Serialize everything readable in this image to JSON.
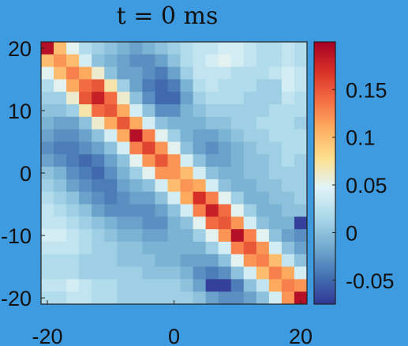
{
  "figure": {
    "background": "#3f9be0"
  },
  "chart_data": {
    "type": "heatmap",
    "title": "t = 0 ms",
    "xlabel": "",
    "ylabel": "",
    "x": [
      -20,
      -18,
      -16,
      -14,
      -12,
      -10,
      -8,
      -6,
      -4,
      -2,
      0,
      2,
      4,
      6,
      8,
      10,
      12,
      14,
      16,
      18,
      20
    ],
    "y": [
      20,
      18,
      16,
      14,
      12,
      10,
      8,
      6,
      4,
      2,
      0,
      -2,
      -4,
      -6,
      -8,
      -10,
      -12,
      -14,
      -16,
      -18,
      -20
    ],
    "x_ticks": [
      -20,
      0,
      20
    ],
    "x_tick_labels": [
      "-20",
      "0",
      "20"
    ],
    "y_ticks": [
      20,
      10,
      0,
      -10,
      -20
    ],
    "y_tick_labels": [
      "20",
      "10",
      "0",
      "-10",
      "-20"
    ],
    "xlim": [
      -21,
      21
    ],
    "ylim": [
      -21,
      21
    ],
    "colorbar": {
      "range": [
        -0.075,
        0.2
      ],
      "ticks": [
        -0.05,
        0,
        0.05,
        0.1,
        0.15
      ],
      "tick_labels": [
        "-0.05",
        "0",
        "0.05",
        "0.1",
        "0.15"
      ],
      "colormap": [
        "#313695",
        "#4575b4",
        "#74add1",
        "#abd9e9",
        "#e0f3f8",
        "#fee090",
        "#fdae61",
        "#f46d43",
        "#d73027",
        "#a50026"
      ]
    },
    "values": [
      [
        0.19,
        0.1,
        0.05,
        0.02,
        0.01,
        0.0,
        -0.01,
        -0.02,
        -0.01,
        0.0,
        0.01,
        0.02,
        0.03,
        0.03,
        0.04,
        0.04,
        0.03,
        0.02,
        0.02,
        0.03,
        0.02
      ],
      [
        0.1,
        0.12,
        0.1,
        0.04,
        0.0,
        -0.01,
        -0.02,
        -0.03,
        -0.03,
        -0.02,
        0.0,
        0.02,
        0.03,
        0.04,
        0.05,
        0.04,
        0.03,
        0.02,
        0.02,
        0.03,
        0.02
      ],
      [
        0.05,
        0.1,
        0.13,
        0.11,
        0.06,
        0.0,
        -0.02,
        -0.02,
        -0.03,
        -0.04,
        -0.02,
        0.01,
        0.03,
        0.03,
        0.03,
        0.02,
        0.02,
        0.02,
        0.03,
        0.04,
        0.03
      ],
      [
        0.02,
        0.05,
        0.11,
        0.14,
        0.15,
        0.07,
        0.01,
        -0.02,
        -0.04,
        -0.05,
        -0.04,
        -0.01,
        0.02,
        0.03,
        0.02,
        0.02,
        0.02,
        0.01,
        0.01,
        0.04,
        0.03
      ],
      [
        0.01,
        0.01,
        0.06,
        0.15,
        0.18,
        0.14,
        0.06,
        0.0,
        -0.03,
        -0.05,
        -0.05,
        -0.02,
        0.01,
        0.02,
        0.02,
        0.02,
        0.01,
        0.01,
        0.01,
        0.03,
        0.02
      ],
      [
        0.0,
        0.0,
        0.01,
        0.07,
        0.14,
        0.15,
        0.11,
        0.04,
        0.0,
        -0.03,
        -0.03,
        -0.01,
        0.0,
        0.01,
        0.01,
        0.01,
        0.01,
        0.01,
        0.02,
        0.02,
        0.02
      ],
      [
        -0.01,
        -0.02,
        -0.02,
        0.0,
        0.06,
        0.11,
        0.15,
        0.11,
        0.04,
        0.0,
        -0.01,
        -0.01,
        -0.01,
        0.0,
        0.0,
        0.01,
        0.01,
        0.02,
        0.02,
        0.02,
        0.01
      ],
      [
        -0.02,
        -0.03,
        -0.03,
        -0.02,
        0.0,
        0.04,
        0.11,
        0.19,
        0.13,
        0.05,
        0.01,
        -0.01,
        -0.02,
        -0.02,
        -0.01,
        0.0,
        0.01,
        0.01,
        0.02,
        0.02,
        0.02
      ],
      [
        -0.03,
        -0.04,
        -0.04,
        -0.03,
        -0.02,
        0.0,
        0.04,
        0.13,
        0.16,
        0.12,
        0.05,
        0.0,
        -0.02,
        -0.03,
        -0.02,
        -0.01,
        0.0,
        0.01,
        0.01,
        0.02,
        0.02
      ],
      [
        -0.02,
        -0.03,
        -0.04,
        -0.05,
        -0.04,
        -0.02,
        0.0,
        0.05,
        0.12,
        0.15,
        0.12,
        0.04,
        0.0,
        -0.02,
        -0.02,
        -0.01,
        0.0,
        0.0,
        0.01,
        0.02,
        0.01
      ],
      [
        0.0,
        -0.01,
        -0.03,
        -0.04,
        -0.05,
        -0.03,
        -0.01,
        0.01,
        0.05,
        0.12,
        0.12,
        0.1,
        0.04,
        0.0,
        -0.01,
        -0.01,
        0.0,
        0.0,
        0.01,
        0.01,
        0.01
      ],
      [
        0.01,
        0.0,
        -0.02,
        -0.03,
        -0.04,
        -0.04,
        -0.02,
        -0.01,
        0.0,
        0.04,
        0.1,
        0.12,
        0.11,
        0.04,
        0.0,
        -0.01,
        -0.01,
        0.0,
        0.0,
        0.01,
        0.01
      ],
      [
        0.02,
        0.01,
        0.0,
        -0.02,
        -0.03,
        -0.04,
        -0.03,
        -0.02,
        -0.02,
        0.0,
        0.04,
        0.11,
        0.17,
        0.13,
        0.05,
        0.01,
        -0.01,
        -0.01,
        0.0,
        0.0,
        0.01
      ],
      [
        0.03,
        0.02,
        0.01,
        0.0,
        -0.02,
        -0.03,
        -0.03,
        -0.03,
        -0.03,
        -0.02,
        0.0,
        0.04,
        0.13,
        0.18,
        0.14,
        0.05,
        0.01,
        -0.01,
        -0.01,
        0.0,
        0.0
      ],
      [
        0.03,
        0.03,
        0.02,
        0.01,
        0.0,
        -0.01,
        -0.02,
        -0.02,
        -0.03,
        -0.03,
        -0.01,
        0.0,
        0.05,
        0.14,
        0.15,
        0.12,
        0.04,
        0.0,
        -0.01,
        -0.01,
        -0.07
      ],
      [
        0.04,
        0.04,
        0.03,
        0.02,
        0.01,
        0.0,
        -0.01,
        -0.01,
        -0.02,
        -0.02,
        -0.01,
        -0.01,
        0.01,
        0.05,
        0.12,
        0.19,
        0.13,
        0.05,
        0.0,
        -0.02,
        -0.03
      ],
      [
        0.03,
        0.03,
        0.03,
        0.02,
        0.01,
        0.01,
        0.0,
        0.0,
        -0.01,
        -0.01,
        -0.01,
        -0.01,
        -0.01,
        0.01,
        0.04,
        0.13,
        0.15,
        0.12,
        0.04,
        0.0,
        -0.02
      ],
      [
        0.02,
        0.02,
        0.02,
        0.01,
        0.01,
        0.01,
        0.0,
        0.0,
        0.0,
        -0.01,
        -0.01,
        -0.02,
        -0.02,
        -0.02,
        0.0,
        0.05,
        0.12,
        0.13,
        0.1,
        0.03,
        0.0
      ],
      [
        0.02,
        0.02,
        0.02,
        0.01,
        0.01,
        0.01,
        0.01,
        0.01,
        0.0,
        0.0,
        0.0,
        -0.01,
        -0.03,
        -0.04,
        -0.03,
        0.0,
        0.04,
        0.1,
        0.13,
        0.11,
        0.04
      ],
      [
        0.03,
        0.03,
        0.04,
        0.03,
        0.02,
        0.02,
        0.01,
        0.01,
        0.01,
        0.01,
        0.01,
        0.0,
        -0.02,
        -0.07,
        -0.07,
        -0.04,
        0.0,
        0.03,
        0.11,
        0.13,
        0.12
      ],
      [
        0.02,
        0.02,
        0.03,
        0.03,
        0.02,
        0.02,
        0.01,
        0.01,
        0.01,
        0.01,
        0.01,
        0.01,
        0.0,
        -0.02,
        -0.03,
        -0.03,
        -0.02,
        0.0,
        0.04,
        0.12,
        0.19
      ]
    ]
  }
}
